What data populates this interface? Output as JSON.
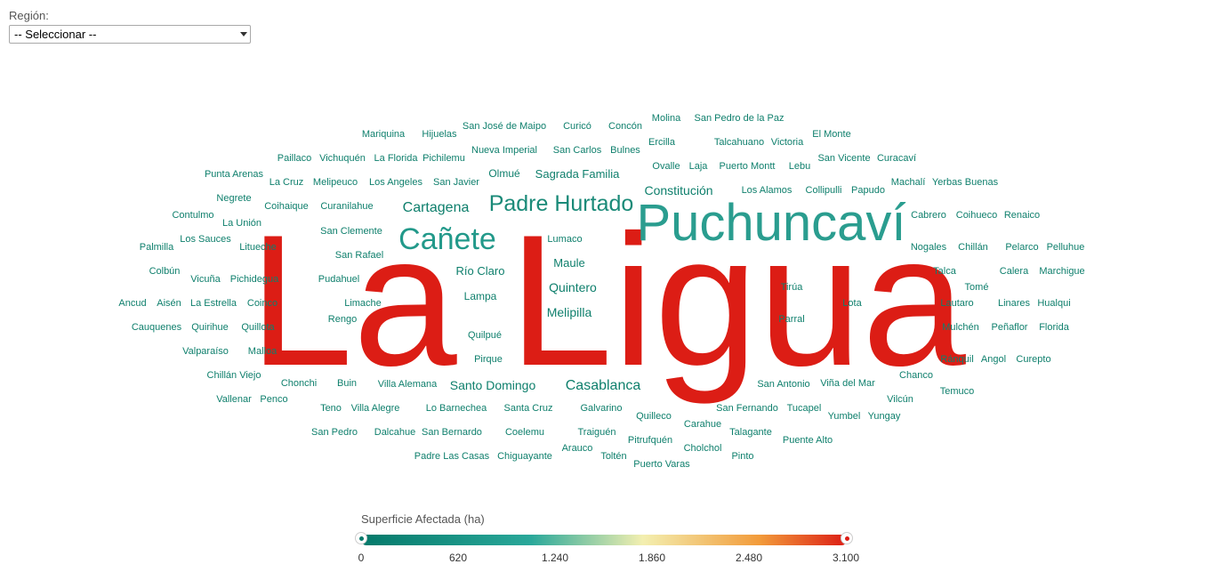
{
  "filter": {
    "label": "Región:",
    "selected": "-- Seleccionar --"
  },
  "colors": {
    "low": "#04796a",
    "mid": "#2aa89a",
    "light": "#f3efb0",
    "orange": "#f29b3a",
    "high": "#dc1d15"
  },
  "legend": {
    "title": "Superficie Afectada (ha)",
    "ticks": [
      "0",
      "620",
      "1.240",
      "1.860",
      "2.480",
      "3.100"
    ]
  },
  "chart_data": {
    "type": "wordcloud",
    "value_label": "Superficie Afectada (ha)",
    "value_range": [
      0,
      3100
    ],
    "words": [
      {
        "text": "La Ligua",
        "value": 3100,
        "color": "#dc1d15"
      },
      {
        "text": "Puchuncaví",
        "value": 1000,
        "color": "#2a9d8f"
      },
      {
        "text": "Padre Hurtado",
        "value": 500,
        "color": "#1a8a78"
      },
      {
        "text": "Cañete",
        "value": 600,
        "color": "#22998a"
      },
      {
        "text": "Cartagena",
        "value": 300,
        "color": "#0e7f6c"
      },
      {
        "text": "Constitución",
        "value": 200,
        "color": "#0e7f6c"
      },
      {
        "text": "Quintero",
        "value": 200,
        "color": "#0e7f6c"
      },
      {
        "text": "Casablanca",
        "value": 250,
        "color": "#0e7f6c"
      },
      {
        "text": "Santo Domingo",
        "value": 200,
        "color": "#0e7f6c"
      },
      {
        "text": "Melipilla",
        "value": 180,
        "color": "#0e7f6c"
      },
      {
        "text": "Maule",
        "value": 150,
        "color": "#0e7f6c"
      },
      {
        "text": "Sagrada Familia",
        "value": 150,
        "color": "#0e7f6c"
      },
      {
        "text": "Río Claro",
        "value": 150,
        "color": "#0e7f6c"
      },
      {
        "text": "Lampa",
        "value": 130,
        "color": "#0e7f6c"
      },
      {
        "text": "Lumaco",
        "value": 100,
        "color": "#0e7f6c"
      },
      {
        "text": "Olmué",
        "value": 100,
        "color": "#0e7f6c"
      }
    ],
    "small_words": [
      "Mariquina",
      "Hijuelas",
      "San José de Maipo",
      "Curicó",
      "Concón",
      "Molina",
      "San Pedro de la Paz",
      "El Monte",
      "Paillaco",
      "Vichuquén",
      "La Florida",
      "Pichilemu",
      "Nueva Imperial",
      "San Carlos",
      "Bulnes",
      "Ercilla",
      "Talcahuano",
      "Victoria",
      "Punta Arenas",
      "La Cruz",
      "Melipeuco",
      "Los Angeles",
      "San Javier",
      "Ovalle",
      "Laja",
      "Puerto Montt",
      "Lebu",
      "San Vicente",
      "Curacaví",
      "Negrete",
      "Coihaique",
      "Curanilahue",
      "Los Alamos",
      "Collipulli",
      "Papudo",
      "Machalí",
      "Yerbas Buenas",
      "Contulmo",
      "La Unión",
      "Cabrero",
      "Coihueco",
      "Renaico",
      "Los Sauces",
      "San Clemente",
      "Palmilla",
      "Litueche",
      "Nogales",
      "Chillán",
      "Pelarco",
      "Pelluhue",
      "San Rafael",
      "Colbún",
      "Vicuña",
      "Pichidegua",
      "Pudahuel",
      "Talca",
      "Calera",
      "Marchigue",
      "Tirúa",
      "Tomé",
      "Ancud",
      "Aisén",
      "La Estrella",
      "Coinco",
      "Limache",
      "Lota",
      "Lautaro",
      "Linares",
      "Hualqui",
      "Rengo",
      "Parral",
      "Cauquenes",
      "Quirihue",
      "Quillota",
      "Mulchén",
      "Peñaflor",
      "Florida",
      "Quilpué",
      "Valparaíso",
      "Malloa",
      "Pirque",
      "Ránquil",
      "Angol",
      "Curepto",
      "Chillán Viejo",
      "Chonchi",
      "Buin",
      "Villa Alemana",
      "San Antonio",
      "Viña del Mar",
      "Chanco",
      "Vallenar",
      "Penco",
      "Temuco",
      "Vilcún",
      "Teno",
      "Villa Alegre",
      "Lo Barnechea",
      "Santa Cruz",
      "Galvarino",
      "Quilleco",
      "San Fernando",
      "Tucapel",
      "Yumbel",
      "Yungay",
      "Carahue",
      "San Pedro",
      "Dalcahue",
      "San Bernardo",
      "Coelemu",
      "Traiguén",
      "Talagante",
      "Puente Alto",
      "Pitrufquén",
      "Arauco",
      "Cholchol",
      "Padre Las Casas",
      "Chiguayante",
      "Toltén",
      "Pinto",
      "Puerto Varas"
    ]
  }
}
